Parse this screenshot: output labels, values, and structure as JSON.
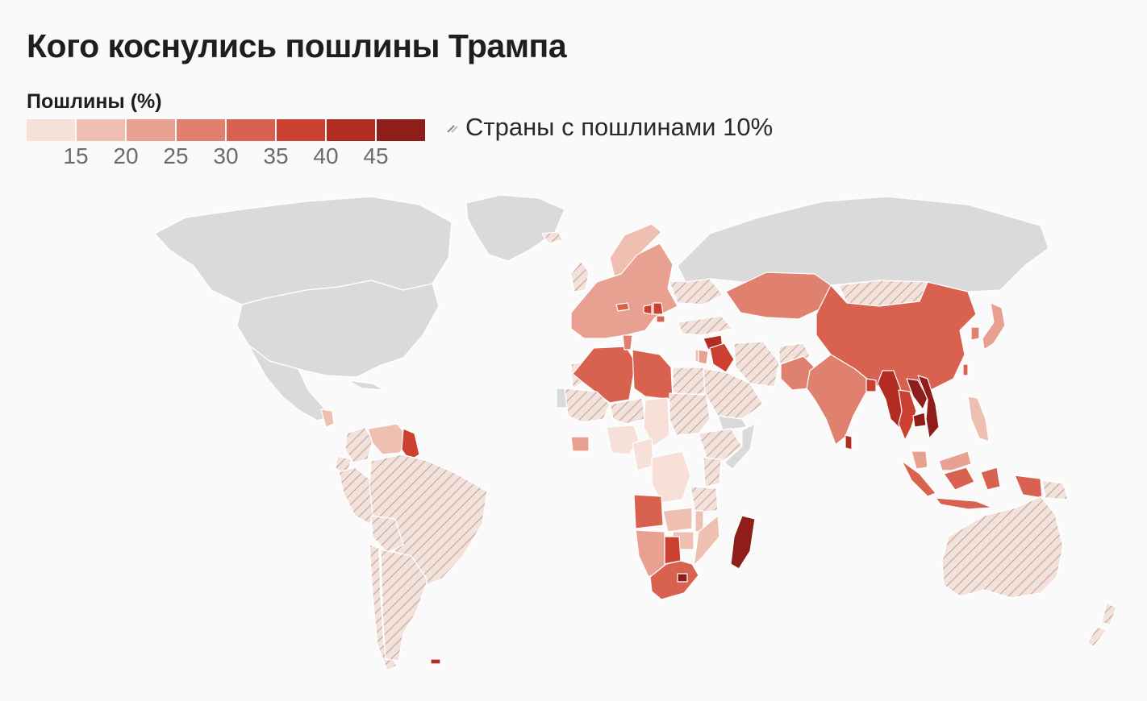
{
  "title": "Кого коснулись пошлины Трампа",
  "legend": {
    "title": "Пошлины (%)",
    "hatch_label": "Страны с пошлинами 10%",
    "bins": [
      {
        "color": "#f6e0d7"
      },
      {
        "color": "#efbfb1"
      },
      {
        "color": "#e8a090"
      },
      {
        "color": "#e08170"
      },
      {
        "color": "#d8614f"
      },
      {
        "color": "#cc4032"
      },
      {
        "color": "#b22c24"
      },
      {
        "color": "#8f1e1b"
      }
    ],
    "ticks": [
      "15",
      "20",
      "25",
      "30",
      "35",
      "40",
      "45"
    ]
  },
  "colors": {
    "land_no_data": "#dadada",
    "hatch_fill": "#f2e2dc",
    "hatch_stroke": "#c9a79c",
    "border": "#ffffff"
  },
  "chart_data": {
    "type": "choropleth",
    "value_unit": "%",
    "regions": [
      {
        "name": "China",
        "tariff": 34
      },
      {
        "name": "India",
        "tariff": 26
      },
      {
        "name": "Pakistan",
        "tariff": 29
      },
      {
        "name": "Sri Lanka",
        "tariff": 44
      },
      {
        "name": "Bangladesh",
        "tariff": 37
      },
      {
        "name": "Myanmar",
        "tariff": 44
      },
      {
        "name": "Laos",
        "tariff": 48
      },
      {
        "name": "Thailand",
        "tariff": 36
      },
      {
        "name": "Cambodia",
        "tariff": 49
      },
      {
        "name": "Vietnam",
        "tariff": 46
      },
      {
        "name": "Malaysia",
        "tariff": 24
      },
      {
        "name": "Indonesia",
        "tariff": 32
      },
      {
        "name": "Philippines",
        "tariff": 17
      },
      {
        "name": "Japan",
        "tariff": 24
      },
      {
        "name": "South Korea",
        "tariff": 25
      },
      {
        "name": "Taiwan",
        "tariff": 32
      },
      {
        "name": "Kazakhstan",
        "tariff": 27
      },
      {
        "name": "Syria",
        "tariff": 41
      },
      {
        "name": "Iraq",
        "tariff": 39
      },
      {
        "name": "Jordan",
        "tariff": 20
      },
      {
        "name": "Israel",
        "tariff": 17
      },
      {
        "name": "European Union",
        "tariff": 20
      },
      {
        "name": "Switzerland",
        "tariff": 31
      },
      {
        "name": "Norway",
        "tariff": 15
      },
      {
        "name": "Serbia",
        "tariff": 37
      },
      {
        "name": "Bosnia and Herzegovina",
        "tariff": 35
      },
      {
        "name": "North Macedonia",
        "tariff": 33
      },
      {
        "name": "Algeria",
        "tariff": 30
      },
      {
        "name": "Libya",
        "tariff": 31
      },
      {
        "name": "Tunisia",
        "tariff": 28
      },
      {
        "name": "Côte d'Ivoire",
        "tariff": 21
      },
      {
        "name": "Nigeria",
        "tariff": 14
      },
      {
        "name": "Chad",
        "tariff": 13
      },
      {
        "name": "Cameroon",
        "tariff": 11
      },
      {
        "name": "DR Congo",
        "tariff": 11
      },
      {
        "name": "Angola",
        "tariff": 32
      },
      {
        "name": "Zambia",
        "tariff": 17
      },
      {
        "name": "Malawi",
        "tariff": 17
      },
      {
        "name": "Mozambique",
        "tariff": 16
      },
      {
        "name": "Zimbabwe",
        "tariff": 18
      },
      {
        "name": "Namibia",
        "tariff": 21
      },
      {
        "name": "Botswana",
        "tariff": 37
      },
      {
        "name": "South Africa",
        "tariff": 30
      },
      {
        "name": "Lesotho",
        "tariff": 50
      },
      {
        "name": "Madagascar",
        "tariff": 47
      },
      {
        "name": "Venezuela",
        "tariff": 15
      },
      {
        "name": "Guyana",
        "tariff": 38
      },
      {
        "name": "Nicaragua",
        "tariff": 18
      },
      {
        "name": "Falkland Islands",
        "tariff": 41
      }
    ],
    "hatched_10_percent": [
      "Brazil",
      "Argentina",
      "Colombia",
      "Peru",
      "Chile",
      "Bolivia",
      "Ecuador",
      "Australia",
      "New Zealand",
      "Saudi Arabia",
      "Egypt",
      "Turkey",
      "Ukraine",
      "Morocco",
      "Mali",
      "Niger",
      "Sudan",
      "Ethiopia",
      "Kenya",
      "Tanzania",
      "Afghanistan",
      "Mongolia",
      "Iran",
      "United Kingdom",
      "Iceland",
      "Papua New Guinea"
    ],
    "no_data": [
      "Russia",
      "United States",
      "Canada",
      "Mexico",
      "Greenland",
      "Somalia",
      "Yemen",
      "Western Sahara",
      "Cuba"
    ]
  }
}
